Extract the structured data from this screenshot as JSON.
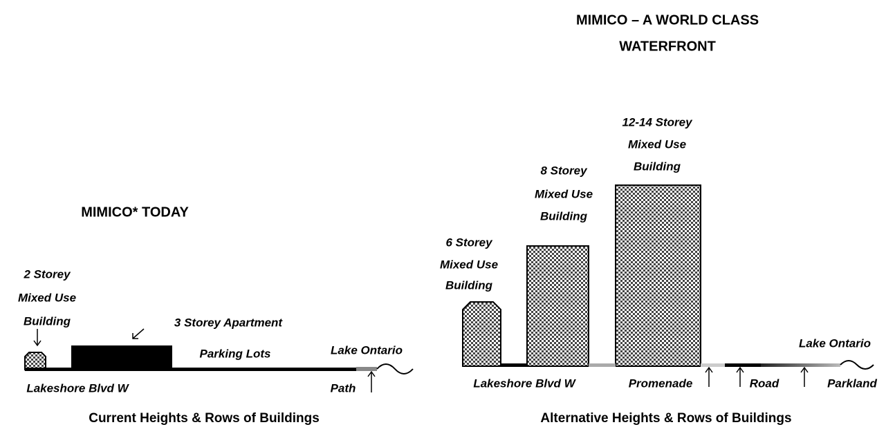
{
  "main_title": [
    "MIMICO – A WORLD CLASS",
    "WATERFRONT"
  ],
  "current": {
    "title": "MIMICO* TODAY",
    "building_2": [
      "2 Storey",
      "Mixed Use",
      "Building"
    ],
    "apartment": "3 Storey Apartment",
    "parking": "Parking Lots",
    "lake": "Lake Ontario",
    "road": "Lakeshore Blvd W",
    "path": "Path",
    "caption": "Current Heights & Rows of Buildings"
  },
  "alternative": {
    "building_6": [
      "6 Storey",
      "Mixed Use",
      "Building"
    ],
    "building_8": [
      "8 Storey",
      "Mixed Use",
      "Building"
    ],
    "building_12": [
      "12-14 Storey",
      "Mixed Use",
      "Building"
    ],
    "lake": "Lake Ontario",
    "road": "Lakeshore Blvd W",
    "promenade": "Promenade",
    "road_2": "Road",
    "parkland": "Parkland",
    "caption": "Alternative Heights & Rows of Buildings"
  }
}
